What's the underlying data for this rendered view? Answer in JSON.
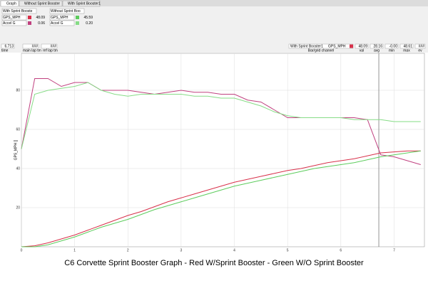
{
  "tabs": [
    "Graph",
    "Without Sprint Booster",
    "With Sprint Booster1"
  ],
  "panels": [
    "With Sprint Booste",
    "Without Sprint Boo"
  ],
  "toolbar": {
    "main_lap": "###",
    "ref_lap": "###",
    "source": "With Sprint Booster1",
    "channel": "GPS_MPH",
    "val": "48.09",
    "avg": "28.16",
    "min": "-0.00",
    "max": "48.61",
    "ev": "###",
    "labels": {
      "time": "time",
      "main_lap": "main lap tm",
      "ref_lap": "ref lap tm",
      "val": "val",
      "avg": "avg",
      "min": "min",
      "max": "max",
      "ev": "ev",
      "channel": "Bar/grid channel"
    }
  },
  "caption": "C6 Corvette Sprint Booster Graph - Red W/Sprint Booster - Green W/O Sprint Booster",
  "chart_data": {
    "type": "line",
    "ylabel": "GPS_MPH []",
    "cursor": 6.713,
    "xlim": [
      0,
      7.57
    ],
    "xticks": [
      0,
      1,
      2,
      3,
      4,
      5,
      6,
      7
    ],
    "ylim": [
      0,
      100
    ],
    "yticks": [
      20,
      40,
      60,
      80
    ],
    "grid": true,
    "x": [
      0,
      0.25,
      0.5,
      0.75,
      1,
      1.25,
      1.5,
      1.75,
      2,
      2.25,
      2.5,
      2.75,
      3,
      3.25,
      3.5,
      3.75,
      4,
      4.25,
      4.5,
      4.75,
      5,
      5.25,
      5.5,
      5.75,
      6,
      6.25,
      6.5,
      6.75,
      7,
      7.25,
      7.5
    ],
    "series": [
      {
        "name": "GPS_MPH",
        "readout": "48.09",
        "color": "#d8304a",
        "values": [
          0,
          0.5,
          2,
          4,
          6,
          8.5,
          11,
          13.5,
          16,
          18,
          20.5,
          23,
          25,
          27,
          29,
          31,
          33,
          34.5,
          36,
          37.5,
          39,
          40,
          41.5,
          43,
          44,
          45,
          46.5,
          48,
          48.5,
          49,
          49
        ]
      },
      {
        "name": "Accel G",
        "readout": "0.06",
        "color": "#c0407f",
        "values": [
          50,
          86,
          86,
          82,
          84,
          84,
          80,
          80,
          80,
          79,
          78,
          79,
          80,
          79,
          79,
          78,
          78,
          75,
          74,
          70,
          66,
          66,
          66,
          66,
          66,
          66,
          65,
          47,
          46,
          44,
          42
        ]
      },
      {
        "name": "GPS_MPH",
        "readout": "45.59",
        "color": "#5ccc5c",
        "values": [
          0,
          0,
          1,
          3,
          5,
          7.5,
          10,
          12,
          14,
          16.5,
          19,
          21,
          23,
          25,
          27,
          29,
          31,
          32.5,
          34,
          35.5,
          37,
          38.5,
          40,
          41,
          42,
          43,
          44.5,
          46,
          47,
          48,
          49
        ]
      },
      {
        "name": "Accel G",
        "readout": "0.20",
        "color": "#86dc86",
        "values": [
          50,
          78,
          80,
          81,
          82,
          84,
          80,
          78,
          77,
          78,
          78,
          78,
          78,
          77,
          77,
          76,
          76,
          74,
          72,
          69,
          67,
          66,
          66,
          66,
          66,
          65,
          65,
          65,
          64,
          64,
          64
        ]
      }
    ]
  }
}
